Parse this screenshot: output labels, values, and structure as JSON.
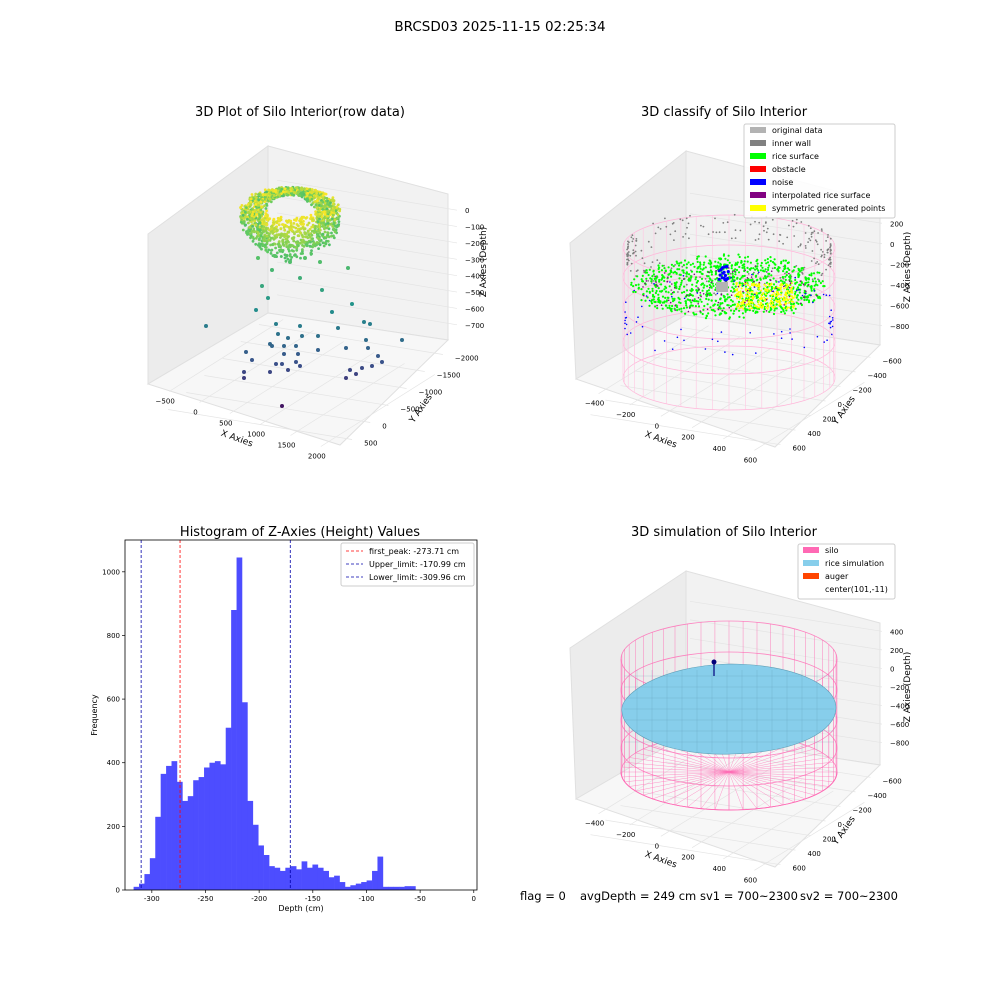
{
  "figure": {
    "suptitle": "BRCSD03 2025-11-15 02:25:34",
    "footer": {
      "flag": "flag = 0",
      "avg_depth": "avgDepth = 249 cm",
      "sv1": "sv1 = 700~2300",
      "sv2": "sv2 = 700~2300"
    }
  },
  "colors": {
    "hist_bar": "#4d4dff",
    "first_peak_line": "#ff0000",
    "limit_lines": "#0000aa",
    "original_data": "#b3b3b3",
    "inner_wall": "#808080",
    "rice_surface": "#00ff00",
    "obstacle": "#ff0000",
    "noise": "#0000ff",
    "interpolated_rice_surface": "#800080",
    "symmetric_generated_points": "#ffff00",
    "silo": "#ff69b4",
    "rice_simulation": "#87ceeb",
    "auger": "#ff4500"
  },
  "chart_data": [
    {
      "type": "scatter",
      "projection": "3d",
      "title": "3D Plot of Silo Interior(row data)",
      "xlabel": "X Axies",
      "ylabel": "Y Axies",
      "zlabel": "Z Axies (Depth)",
      "xticks": [
        "−500",
        "0",
        "500",
        "1000",
        "1500",
        "2000"
      ],
      "yticks": [
        "500",
        "0",
        "−500",
        "−1000",
        "−1500",
        "−2000"
      ],
      "zticks": [
        "0",
        "−100",
        "−200",
        "−300",
        "−400",
        "−500",
        "−600",
        "−700"
      ],
      "xlim": [
        -600,
        2000
      ],
      "ylim": [
        -2000,
        600
      ],
      "zlim": [
        -780,
        0
      ],
      "colormap": "viridis by depth",
      "grid": true
    },
    {
      "type": "scatter",
      "projection": "3d",
      "title": "3D classify of Silo Interior",
      "xlabel": "X Axies",
      "ylabel": "Y Axies",
      "zlabel": "Z Axies (Depth)",
      "xticks": [
        "−400",
        "−200",
        "0",
        "200",
        "400",
        "600"
      ],
      "yticks": [
        "600",
        "400",
        "200",
        "0",
        "−200",
        "−400",
        "−600"
      ],
      "zticks": [
        "200",
        "0",
        "−200",
        "−400",
        "−600",
        "−800"
      ],
      "legend_position": "top-right",
      "legend": [
        {
          "label": "original data",
          "color": "#b3b3b3"
        },
        {
          "label": "inner wall",
          "color": "#808080"
        },
        {
          "label": "rice surface",
          "color": "#00ff00"
        },
        {
          "label": "obstacle",
          "color": "#ff0000"
        },
        {
          "label": "noise",
          "color": "#0000ff"
        },
        {
          "label": "interpolated rice surface",
          "color": "#800080"
        },
        {
          "label": "symmetric generated points",
          "color": "#ffff00"
        }
      ],
      "grid": true
    },
    {
      "type": "bar",
      "title": "Histogram of Z-Axies (Height) Values",
      "xlabel": "Depth (cm)",
      "ylabel": "Frequency",
      "xlim": [
        -325,
        3
      ],
      "ylim": [
        0,
        1100
      ],
      "xticks": [
        -300,
        -250,
        -200,
        -150,
        -100,
        -50,
        0
      ],
      "yticks": [
        0,
        200,
        400,
        600,
        800,
        1000
      ],
      "bin_start": -317,
      "bin_width": 5.05,
      "values": [
        10,
        20,
        50,
        100,
        230,
        365,
        390,
        405,
        340,
        280,
        295,
        345,
        355,
        385,
        400,
        405,
        395,
        510,
        880,
        1045,
        590,
        280,
        205,
        140,
        110,
        75,
        70,
        60,
        70,
        75,
        65,
        90,
        70,
        80,
        70,
        60,
        40,
        45,
        25,
        10,
        15,
        20,
        25,
        30,
        60,
        105,
        10,
        10,
        10,
        10,
        12,
        12
      ],
      "vlines": [
        {
          "label": "first_peak: -273.71 cm",
          "x": -273.71,
          "color": "#ff0000"
        },
        {
          "label": "Upper_limit: -170.99 cm",
          "x": -170.99,
          "color": "#0000aa"
        },
        {
          "label": "Lower_limit: -309.96 cm",
          "x": -309.96,
          "color": "#0000aa"
        }
      ],
      "legend_position": "top-right",
      "grid": false
    },
    {
      "type": "surface",
      "projection": "3d",
      "title": "3D simulation of Silo Interior",
      "xlabel": "X Axies",
      "ylabel": "Y Axies",
      "zlabel": "Z Axies (Depth)",
      "xticks": [
        "−400",
        "−200",
        "0",
        "200",
        "400",
        "600"
      ],
      "yticks": [
        "600",
        "400",
        "200",
        "0",
        "−200",
        "−400",
        "−600"
      ],
      "zticks": [
        "400",
        "200",
        "0",
        "−200",
        "−400",
        "−600",
        "−800"
      ],
      "legend_position": "top-right",
      "legend": [
        {
          "label": "silo",
          "color": "#ff69b4"
        },
        {
          "label": "rice simulation",
          "color": "#87ceeb"
        },
        {
          "label": "auger",
          "color": "#ff4500"
        },
        {
          "label": "center(101,-11)",
          "color": ""
        }
      ],
      "grid": true
    }
  ]
}
